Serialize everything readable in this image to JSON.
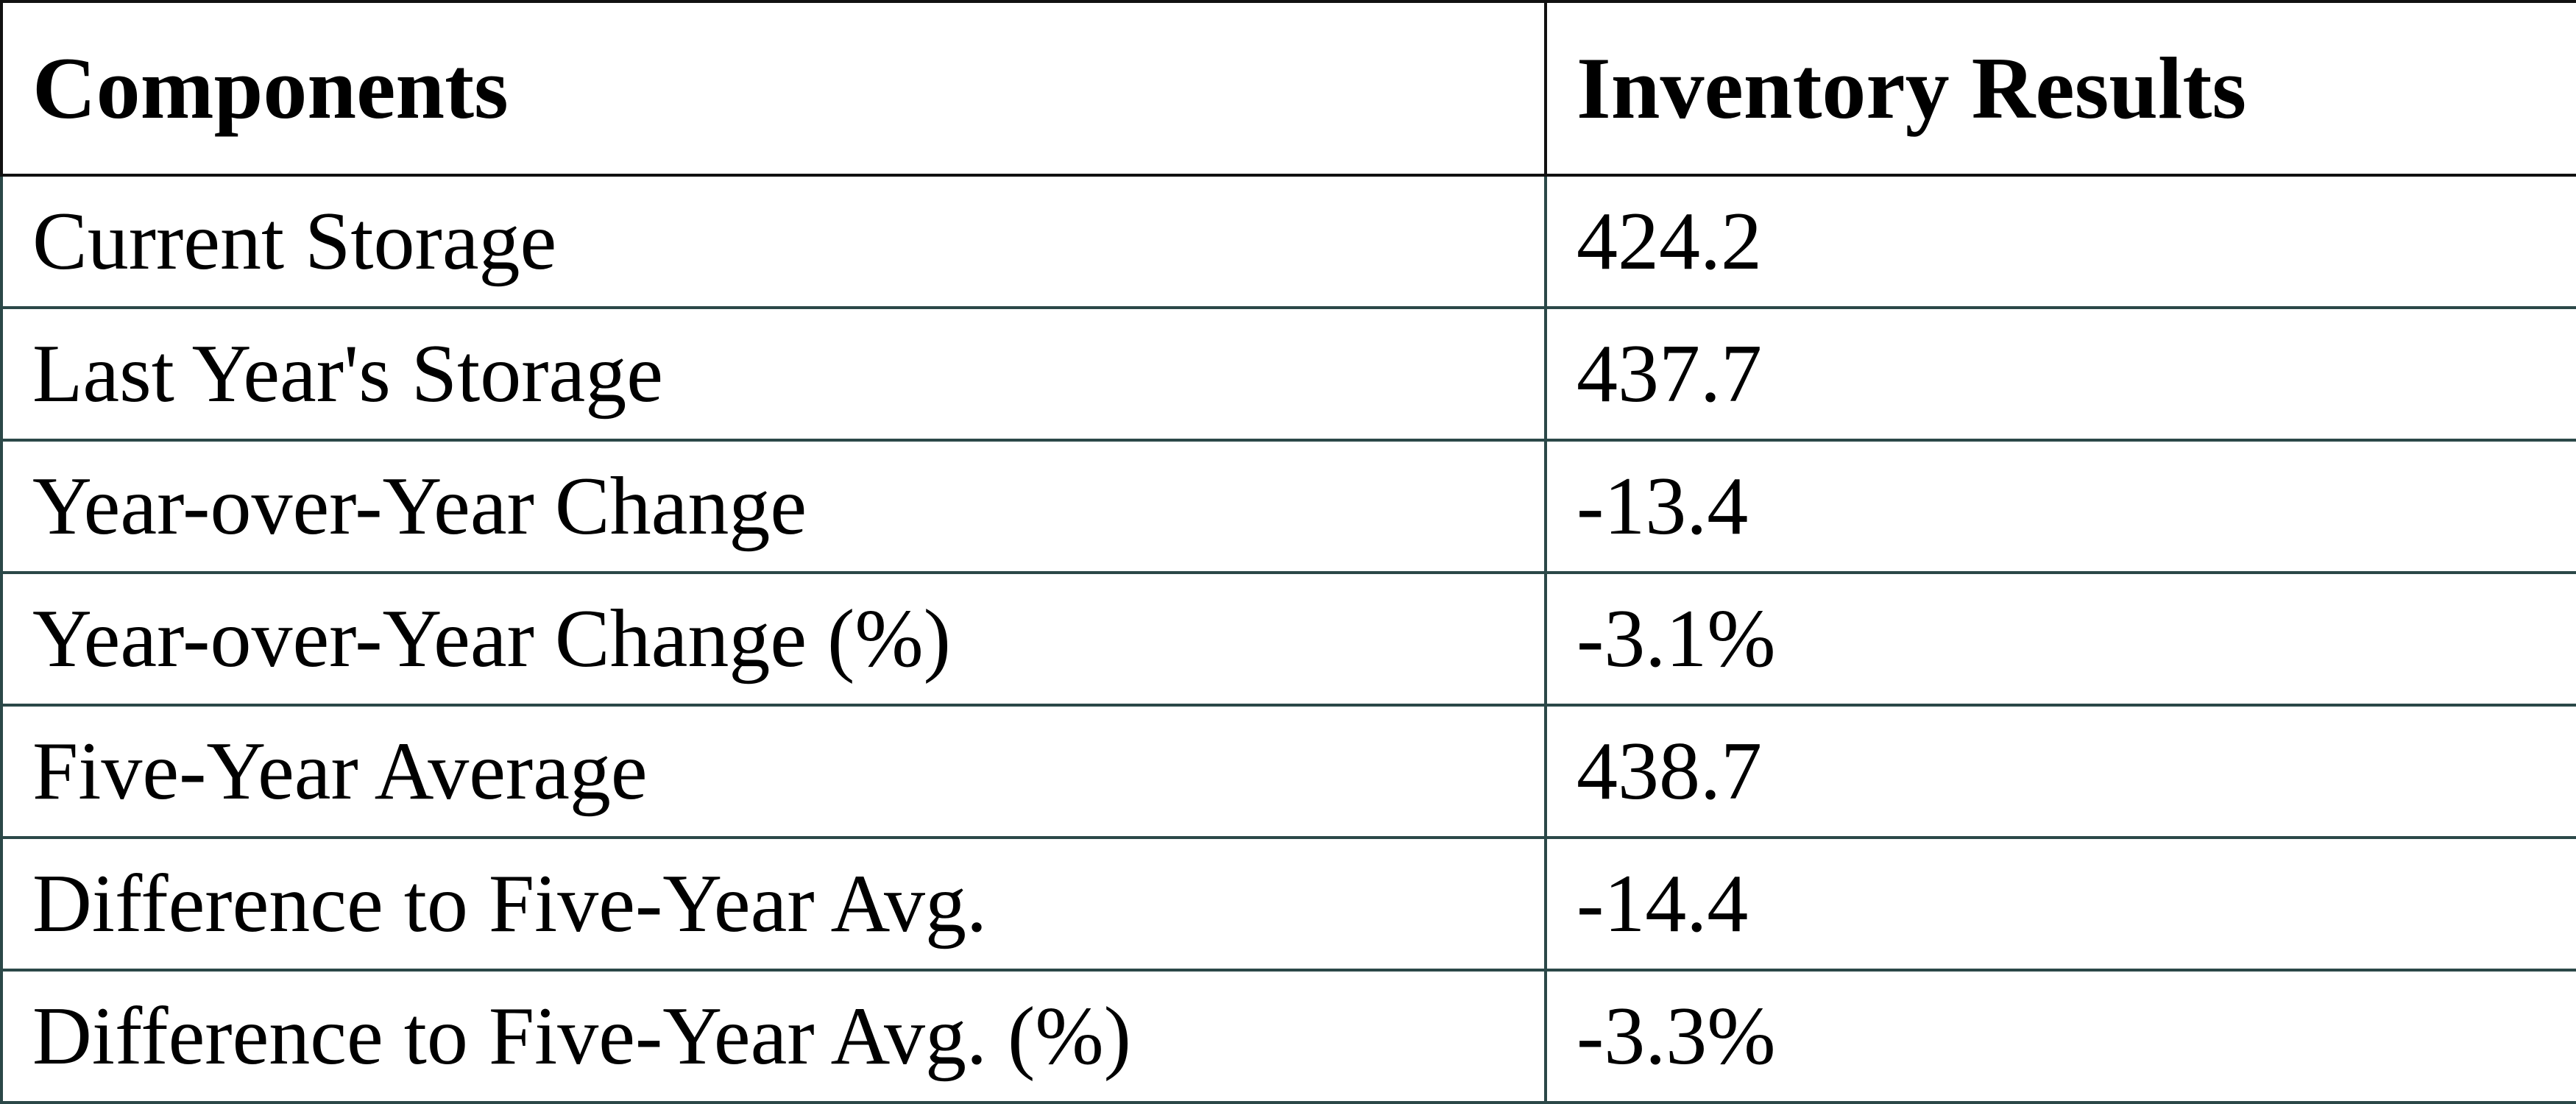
{
  "table": {
    "header": [
      "Components",
      "Inventory Results"
    ],
    "rows": [
      [
        "Current Storage",
        "424.2"
      ],
      [
        "Last Year's Storage",
        "437.7"
      ],
      [
        "Year-over-Year Change",
        "-13.4"
      ],
      [
        "Year-over-Year Change (%)",
        "-3.1%"
      ],
      [
        "Five-Year Average",
        "438.7"
      ],
      [
        "Difference to Five-Year Avg.",
        "-14.4"
      ],
      [
        "Difference to Five-Year Avg. (%)",
        "-3.3%"
      ]
    ]
  }
}
